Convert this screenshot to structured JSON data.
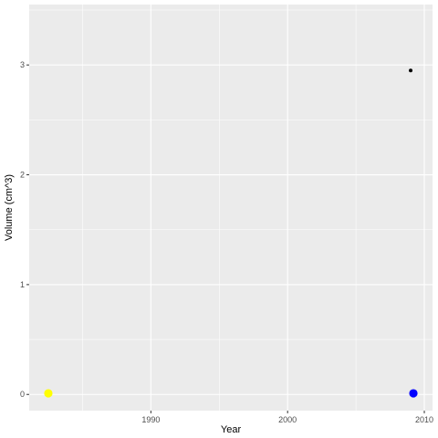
{
  "chart_data": {
    "type": "scatter",
    "title": "",
    "xlabel": "Year",
    "ylabel": "Volume (cm^3)",
    "xlim": [
      1981.1,
      2010.6
    ],
    "ylim": [
      -0.1475,
      3.55
    ],
    "x_ticks": [
      1990,
      2000,
      2010
    ],
    "x_tick_labels": [
      "1990",
      "2000",
      "2010"
    ],
    "y_ticks": [
      0,
      1,
      2,
      3
    ],
    "y_tick_labels": [
      "0",
      "1",
      "2",
      "3"
    ],
    "grid": true,
    "legend": "none",
    "points": [
      {
        "x": 1982.5,
        "y": 0.01,
        "color": "#ffff00",
        "size": "large"
      },
      {
        "x": 2009.2,
        "y": 0.01,
        "color": "#0000ff",
        "size": "large"
      },
      {
        "x": 2009.0,
        "y": 2.95,
        "color": "#000000",
        "size": "small"
      }
    ],
    "colors": {
      "panel_background": "#ebebeb",
      "grid": "#ffffff",
      "tick_text": "#4d4d4d",
      "tick_mark": "#333333"
    }
  }
}
